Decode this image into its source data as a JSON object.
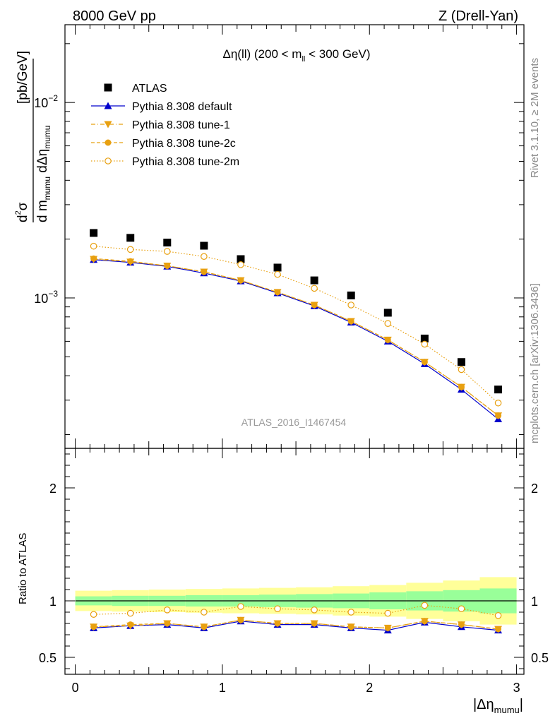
{
  "header": {
    "left": "8000 GeV pp",
    "right": "Z (Drell-Yan)"
  },
  "plot_title": {
    "prefix": "Δη(ll) (200 < m",
    "sub": "ll",
    "suffix": " < 300 GeV)"
  },
  "ylabel": {
    "num_d": "d",
    "num_sup": "2",
    "num_sigma": "σ",
    "den_d": "d m",
    "den_sub": "mumu",
    "den_deta": " dΔη",
    "den_sub2": "mumu",
    "unit": "[pb/GeV]"
  },
  "xlabel": {
    "main": "|Δη",
    "sub": "mumu",
    "close": "|"
  },
  "ratio_ylabel": "Ratio to ATLAS",
  "analysis_id": "ATLAS_2016_I1467454",
  "side_text": {
    "rivet": "Rivet 3.1.10, ≥ 2M events",
    "mcplots": "mcplots.cern.ch [arXiv:1306.3436]"
  },
  "colors": {
    "atlas": "#000000",
    "default": "#0000cc",
    "tunes": "#e8a010",
    "band_inner": "#99ff99",
    "band_outer": "#ffff99"
  },
  "chart_data": [
    {
      "type": "scatter",
      "panel": "main",
      "y_scale": "log",
      "ylim": [
        0.00017,
        0.025
      ],
      "xlim": [
        -0.07,
        3.05
      ],
      "y_tick_labels": [
        {
          "base": "10",
          "exp": "−2",
          "value": 0.01
        },
        {
          "base": "10",
          "exp": "−3",
          "value": 0.001
        }
      ],
      "x": [
        0.125,
        0.375,
        0.625,
        0.875,
        1.125,
        1.375,
        1.625,
        1.875,
        2.125,
        2.375,
        2.625,
        2.875
      ],
      "series": [
        {
          "name": "ATLAS",
          "marker": "square",
          "line": "none",
          "values": [
            0.00215,
            0.00203,
            0.00192,
            0.00185,
            0.00158,
            0.00143,
            0.00123,
            0.00103,
            0.00084,
            0.00062,
            0.00047,
            0.00034
          ]
        },
        {
          "name": "Pythia 8.308 default",
          "marker": "triangle-up",
          "line": "solid",
          "values": [
            0.00157,
            0.00152,
            0.00145,
            0.00134,
            0.00122,
            0.00106,
            0.00091,
            0.00075,
            0.0006,
            0.00046,
            0.00034,
            0.00024
          ]
        },
        {
          "name": "Pythia 8.308 tune-1",
          "marker": "triangle-down",
          "line": "dashdot",
          "values": [
            0.00158,
            0.00153,
            0.00146,
            0.00136,
            0.00123,
            0.00107,
            0.00092,
            0.00076,
            0.00061,
            0.00047,
            0.00035,
            0.00025
          ]
        },
        {
          "name": "Pythia 8.308 tune-2c",
          "marker": "circle",
          "line": "dashed",
          "values": [
            0.00159,
            0.00154,
            0.00146,
            0.00136,
            0.00123,
            0.00107,
            0.00092,
            0.00076,
            0.00061,
            0.00047,
            0.00035,
            0.00025
          ]
        },
        {
          "name": "Pythia 8.308 tune-2m",
          "marker": "open-circle",
          "line": "dotted",
          "values": [
            0.00184,
            0.00177,
            0.00173,
            0.00163,
            0.00148,
            0.00132,
            0.00112,
            0.00092,
            0.00074,
            0.00058,
            0.00043,
            0.00029
          ]
        }
      ]
    },
    {
      "type": "line",
      "panel": "ratio",
      "ylim": [
        0.35,
        2.35
      ],
      "xlim": [
        -0.07,
        3.05
      ],
      "y_ticks": [
        0.5,
        1,
        2
      ],
      "y_tick_labels": [
        "0.5",
        "1",
        "2"
      ],
      "x_ticks": [
        0,
        1,
        2,
        3
      ],
      "x_tick_labels": [
        "0",
        "1",
        "2",
        "3"
      ],
      "x": [
        0.125,
        0.375,
        0.625,
        0.875,
        1.125,
        1.375,
        1.625,
        1.875,
        2.125,
        2.375,
        2.625,
        2.875
      ],
      "bands": {
        "inner": [
          0.04,
          0.045,
          0.045,
          0.05,
          0.05,
          0.055,
          0.06,
          0.065,
          0.075,
          0.085,
          0.095,
          0.11
        ],
        "outer": [
          0.09,
          0.095,
          0.1,
          0.105,
          0.11,
          0.115,
          0.12,
          0.13,
          0.14,
          0.16,
          0.18,
          0.21
        ]
      },
      "series": [
        {
          "name": "Pythia 8.308 default",
          "values": [
            0.76,
            0.78,
            0.79,
            0.76,
            0.82,
            0.79,
            0.79,
            0.76,
            0.74,
            0.81,
            0.77,
            0.74
          ]
        },
        {
          "name": "Pythia 8.308 tune-1",
          "values": [
            0.77,
            0.78,
            0.8,
            0.77,
            0.83,
            0.8,
            0.8,
            0.77,
            0.76,
            0.82,
            0.79,
            0.75
          ]
        },
        {
          "name": "Pythia 8.308 tune-2c",
          "values": [
            0.77,
            0.79,
            0.8,
            0.77,
            0.83,
            0.8,
            0.8,
            0.77,
            0.76,
            0.82,
            0.79,
            0.75
          ]
        },
        {
          "name": "Pythia 8.308 tune-2m",
          "values": [
            0.88,
            0.89,
            0.92,
            0.9,
            0.95,
            0.93,
            0.92,
            0.9,
            0.89,
            0.96,
            0.93,
            0.87
          ]
        }
      ]
    }
  ]
}
